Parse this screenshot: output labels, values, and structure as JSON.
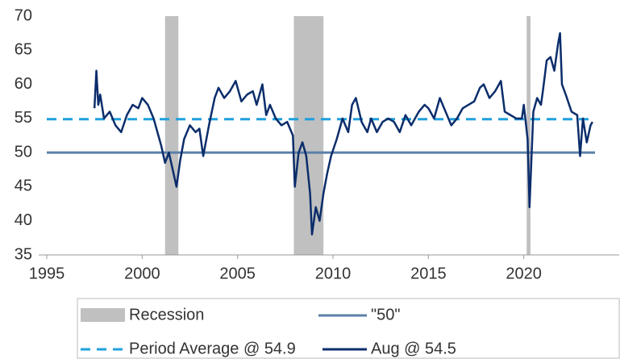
{
  "chart_data": {
    "type": "line",
    "xlim": [
      1995,
      2025
    ],
    "xticks": [
      1995,
      2000,
      2005,
      2010,
      2015,
      2020
    ],
    "ylim": [
      35,
      70
    ],
    "yticks": [
      35,
      40,
      45,
      50,
      55,
      60,
      65,
      70
    ],
    "recession": {
      "name": "Recession",
      "color": "#c0c0c0",
      "spans": [
        [
          2001.2,
          2001.9
        ],
        [
          2007.95,
          2009.5
        ],
        [
          2020.15,
          2020.35
        ]
      ]
    },
    "reference_lines": [
      {
        "name": "\"50\"",
        "value": 50,
        "color": "#5b80a8",
        "dashed": false
      },
      {
        "name": "Period Average @ 54.9",
        "value": 54.9,
        "color": "#1fa0dd",
        "dashed": true
      }
    ],
    "x": [
      1997.5,
      1997.6,
      1997.7,
      1997.8,
      1998.0,
      1998.3,
      1998.6,
      1998.9,
      1999.2,
      1999.5,
      1999.8,
      2000.0,
      2000.3,
      2000.6,
      2000.9,
      2001.0,
      2001.2,
      2001.4,
      2001.6,
      2001.8,
      2002.0,
      2002.2,
      2002.5,
      2002.8,
      2003.0,
      2003.2,
      2003.5,
      2003.8,
      2004.0,
      2004.3,
      2004.6,
      2004.9,
      2005.2,
      2005.5,
      2005.8,
      2006.0,
      2006.3,
      2006.5,
      2006.7,
      2007.0,
      2007.3,
      2007.6,
      2007.9,
      2008.0,
      2008.2,
      2008.4,
      2008.6,
      2008.8,
      2008.9,
      2009.1,
      2009.3,
      2009.5,
      2009.7,
      2009.9,
      2010.2,
      2010.5,
      2010.8,
      2011.0,
      2011.2,
      2011.5,
      2011.8,
      2012.0,
      2012.3,
      2012.6,
      2012.9,
      2013.2,
      2013.5,
      2013.8,
      2014.1,
      2014.5,
      2014.8,
      2015.0,
      2015.3,
      2015.6,
      2015.9,
      2016.2,
      2016.5,
      2016.8,
      2017.1,
      2017.4,
      2017.7,
      2017.9,
      2018.2,
      2018.5,
      2018.8,
      2019.0,
      2019.3,
      2019.6,
      2019.9,
      2020.0,
      2020.2,
      2020.3,
      2020.5,
      2020.7,
      2020.9,
      2021.0,
      2021.2,
      2021.4,
      2021.6,
      2021.8,
      2021.9,
      2022.0,
      2022.2,
      2022.5,
      2022.8,
      2022.95,
      2023.1,
      2023.3,
      2023.5,
      2023.6
    ],
    "series": [
      {
        "name": "Aug @ 54.5",
        "color": "#0b2d6b",
        "values": [
          56.5,
          62,
          57,
          58.5,
          55,
          56,
          54,
          53,
          55.5,
          57,
          56.5,
          58,
          57,
          55,
          52,
          51,
          48.5,
          50,
          47.5,
          45,
          49,
          52,
          54,
          53,
          53.5,
          49.5,
          54,
          58,
          59.5,
          58,
          59,
          60.5,
          57.5,
          58.5,
          59,
          57,
          60,
          55.5,
          57,
          55,
          54,
          54.5,
          52.5,
          45,
          50,
          51.5,
          49.5,
          44,
          38,
          42,
          40,
          44,
          47,
          49.5,
          52,
          55,
          53,
          57,
          58,
          54.5,
          53,
          55,
          53,
          54.5,
          55,
          54.5,
          53,
          55.5,
          54,
          56,
          57,
          56.5,
          55,
          58,
          56,
          54,
          55,
          56.5,
          57,
          57.5,
          59.5,
          60,
          58,
          59,
          60.5,
          56,
          55.5,
          55,
          55,
          57,
          52,
          42,
          56,
          58,
          57,
          59,
          63.5,
          64,
          62,
          66,
          67.5,
          60,
          58.5,
          56,
          55.5,
          49.5,
          55,
          51.5,
          54,
          54.5
        ]
      }
    ]
  }
}
